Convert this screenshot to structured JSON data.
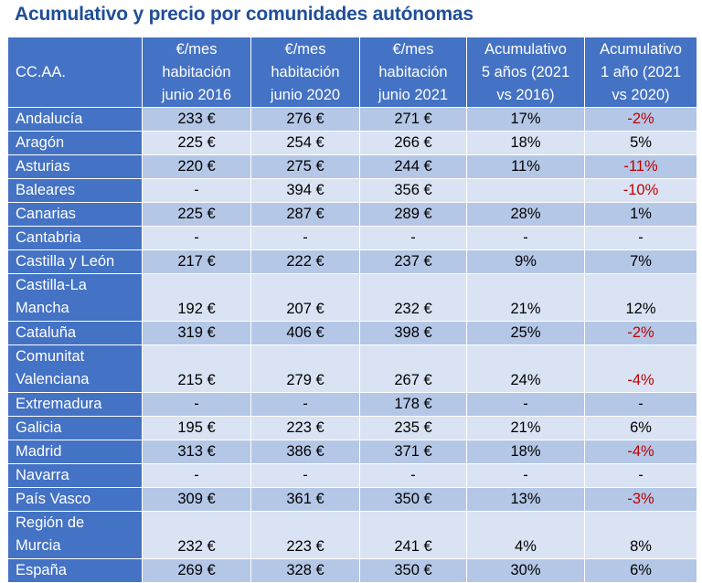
{
  "title": "Acumulativo y precio por comunidades autónomas",
  "headers": [
    [
      "CC.AA."
    ],
    [
      "€/mes",
      "habitación",
      "junio 2016"
    ],
    [
      "€/mes",
      "habitación",
      "junio 2020"
    ],
    [
      "€/mes",
      "habitación",
      "junio 2021"
    ],
    [
      "Acumulativo",
      "5 años (2021",
      "vs 2016)"
    ],
    [
      "Acumulativo",
      "1 año (2021",
      "vs 2020)"
    ]
  ],
  "rows": [
    {
      "name": [
        "Andalucía"
      ],
      "cells": [
        "233 €",
        "276 €",
        "271 €",
        "17%",
        "-2%"
      ]
    },
    {
      "name": [
        "Aragón"
      ],
      "cells": [
        "225 €",
        "254 €",
        "266 €",
        "18%",
        "5%"
      ]
    },
    {
      "name": [
        "Asturias"
      ],
      "cells": [
        "220 €",
        "275 €",
        "244 €",
        "11%",
        "-11%"
      ]
    },
    {
      "name": [
        "Baleares"
      ],
      "cells": [
        "-",
        "394 €",
        "356 €",
        "",
        "-10%"
      ]
    },
    {
      "name": [
        "Canarias"
      ],
      "cells": [
        "225 €",
        "287 €",
        "289 €",
        "28%",
        "1%"
      ]
    },
    {
      "name": [
        "Cantabria"
      ],
      "cells": [
        "-",
        "-",
        "-",
        "-",
        "-"
      ]
    },
    {
      "name": [
        "Castilla y León"
      ],
      "cells": [
        "217 €",
        "222 €",
        "237 €",
        "9%",
        "7%"
      ]
    },
    {
      "name": [
        "Castilla-La",
        "Mancha"
      ],
      "cells": [
        "192 €",
        "207 €",
        "232 €",
        "21%",
        "12%"
      ]
    },
    {
      "name": [
        "Cataluña"
      ],
      "cells": [
        "319 €",
        "406 €",
        "398 €",
        "25%",
        "-2%"
      ]
    },
    {
      "name": [
        "Comunitat",
        "Valenciana"
      ],
      "cells": [
        "215 €",
        "279 €",
        "267 €",
        "24%",
        "-4%"
      ]
    },
    {
      "name": [
        "Extremadura"
      ],
      "cells": [
        "-",
        "-",
        "178 €",
        "-",
        "-"
      ]
    },
    {
      "name": [
        "Galicia"
      ],
      "cells": [
        "195 €",
        "223 €",
        "235 €",
        "21%",
        "6%"
      ]
    },
    {
      "name": [
        "Madrid"
      ],
      "cells": [
        "313 €",
        "386 €",
        "371 €",
        "18%",
        "-4%"
      ]
    },
    {
      "name": [
        "Navarra"
      ],
      "cells": [
        "-",
        "-",
        "-",
        "-",
        "-"
      ]
    },
    {
      "name": [
        "País Vasco"
      ],
      "cells": [
        "309 €",
        "361 €",
        "350 €",
        "13%",
        "-3%"
      ]
    },
    {
      "name": [
        "Región de",
        "Murcia"
      ],
      "cells": [
        "232 €",
        "223 €",
        "241 €",
        "4%",
        "8%"
      ]
    },
    {
      "name": [
        "España"
      ],
      "cells": [
        "269 €",
        "328 €",
        "350 €",
        "30%",
        "6%"
      ]
    }
  ],
  "colors": {
    "header": "#4472c4",
    "row_dark": "#b4c7e7",
    "row_light": "#dae3f3",
    "negative": "#c00000",
    "title": "#1f4e99"
  }
}
